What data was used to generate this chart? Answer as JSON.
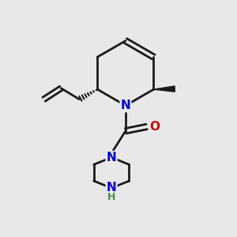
{
  "bg_color": "#e8e8e8",
  "bond_color": "#1a1a1a",
  "N_color": "#0000cc",
  "O_color": "#cc0000",
  "H_color": "#4a8a4a",
  "line_width": 2.0,
  "figsize": [
    3.0,
    3.0
  ],
  "dpi": 100,
  "xlim": [
    0,
    10
  ],
  "ylim": [
    0,
    10
  ]
}
